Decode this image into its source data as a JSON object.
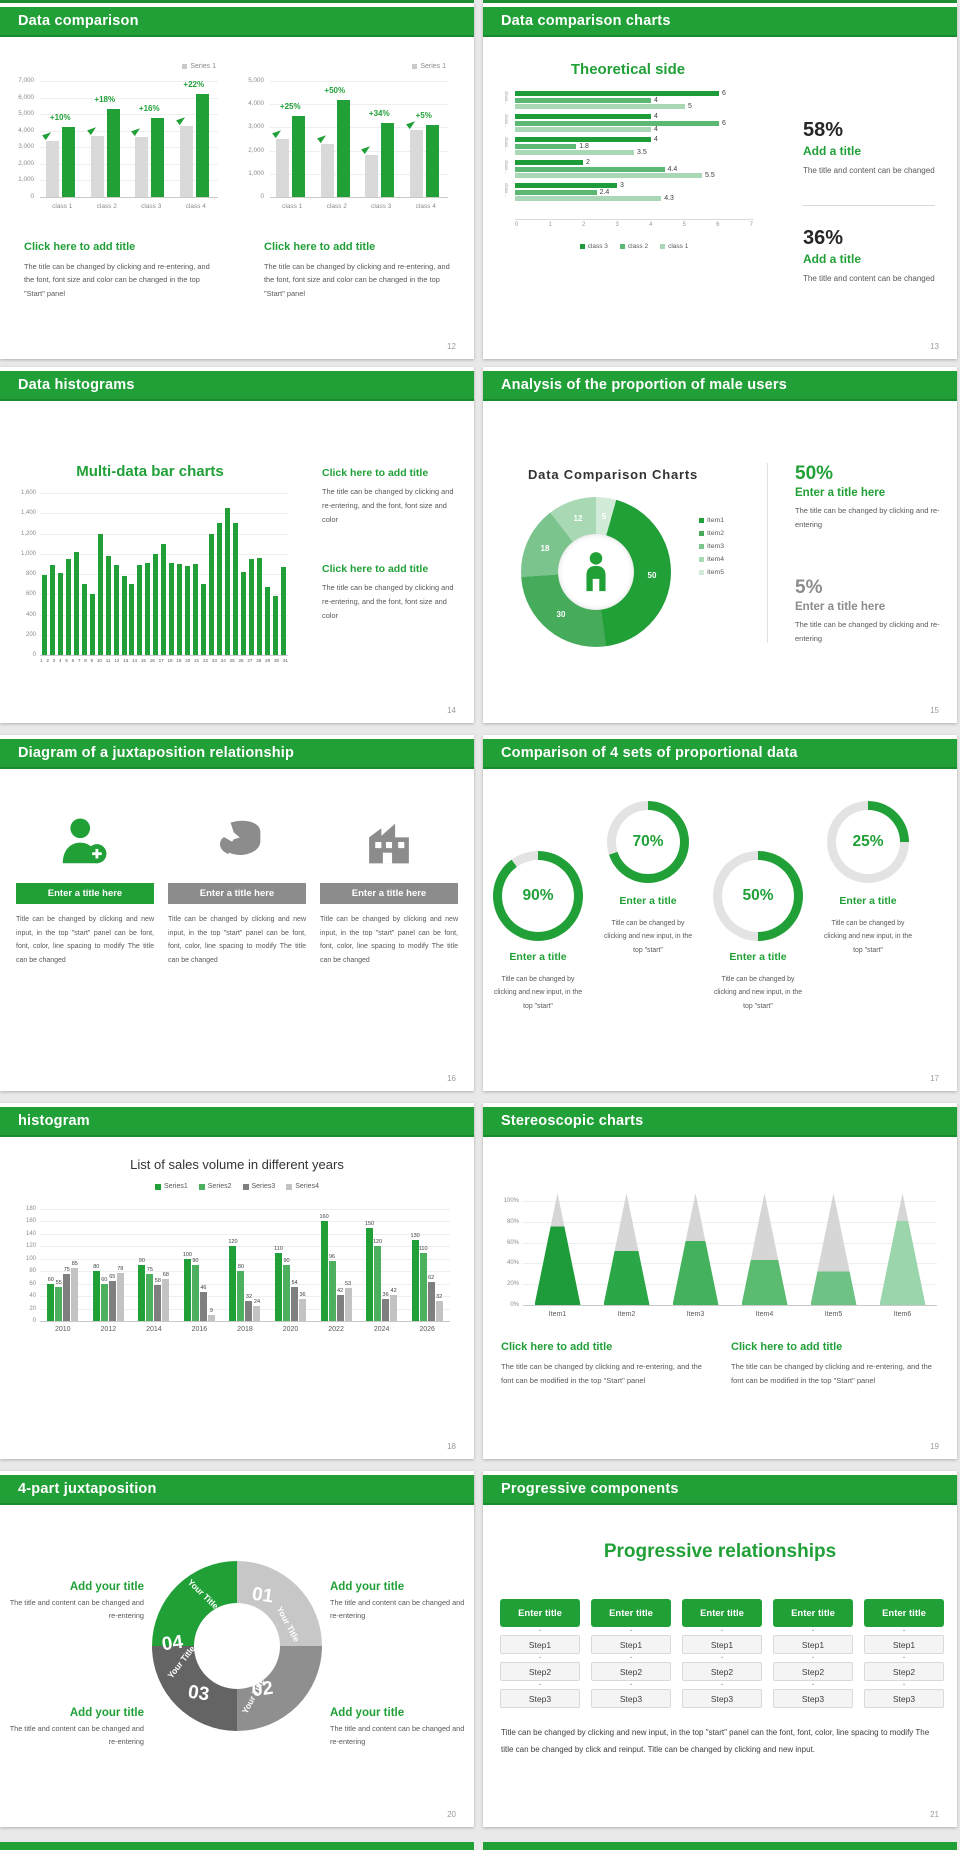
{
  "page": {
    "background": "#e9e9e9",
    "accent_green": "#21a038",
    "top_strip_color": "#1f8f35",
    "bottom_strip_color": "#21a038"
  },
  "slides": [
    {
      "title": "Data comparison",
      "page_num": "12",
      "type": "dualbar",
      "chart_refs": [
        0,
        1
      ],
      "blocks": [
        {
          "heading": "Click here to add title",
          "body": "The title can be changed by clicking and re-entering, and the font, font size and color can be changed in the top \"Start\" panel"
        },
        {
          "heading": "Click here to add title",
          "body": "The title can be changed by clicking and re-entering, and the font, font size and color can be changed in the top \"Start\" panel"
        }
      ]
    },
    {
      "title": "Data comparison charts",
      "page_num": "13",
      "type": "hbar",
      "chart_ref": 2,
      "stats": [
        {
          "value": "58%",
          "label": "Add a title",
          "body": "The title and content can be changed",
          "color": "#262626"
        },
        {
          "value": "36%",
          "label": "Add a title",
          "body": "The title and content can be changed",
          "color": "#262626"
        }
      ]
    },
    {
      "title": "Data histograms",
      "page_num": "14",
      "type": "histogram",
      "chart_ref": 3,
      "blocks": [
        {
          "heading": "Click here to add title",
          "body": "The title can be changed by clicking and re-entering, and the font, font size and color"
        },
        {
          "heading": "Click here to add title",
          "body": "The title can be changed by clicking and re-entering, and the font, font size and color"
        }
      ]
    },
    {
      "title": "Analysis of the proportion of male users",
      "page_num": "15",
      "type": "donut",
      "chart_ref": 4,
      "stats": [
        {
          "value": "50%",
          "label": "Enter a title here",
          "body": "The title can be changed by clicking and re-entering",
          "color": "#21a038"
        },
        {
          "value": "5%",
          "label": "Enter a title here",
          "body": "The title can be changed by clicking and re-entering",
          "color": "#8c8c8c"
        }
      ]
    },
    {
      "title": "Diagram of a juxtaposition relationship",
      "page_num": "16",
      "type": "trio",
      "items": [
        {
          "icon": "person-add-icon",
          "bar_color": "#21a038",
          "title": "Enter a title here",
          "body": "Title can be changed by clicking and new input, in the top \"start\" panel can be font, font, color, line spacing to modify The title can be changed"
        },
        {
          "icon": "pie-3d-icon",
          "bar_color": "#8c8c8c",
          "title": "Enter a title here",
          "body": "Title can be changed by clicking and new input, in the top \"start\" panel can be font, font, color, line spacing to modify The title can be changed"
        },
        {
          "icon": "building-icon",
          "bar_color": "#8c8c8c",
          "title": "Enter a title here",
          "body": "Title can be changed by clicking and new input, in the top \"start\" panel can be font, font, color, line spacing to modify The title can be changed"
        }
      ]
    },
    {
      "title": "Comparison of 4 sets of proportional data",
      "page_num": "17",
      "type": "rings",
      "chart_ref": 7,
      "items": [
        {
          "value": "90%",
          "label": "Enter a title",
          "body": "Title can be changed by clicking and new input, in the top \"start\""
        },
        {
          "value": "70%",
          "label": "Enter a title",
          "body": "Title can be changed by clicking and new input, in the top \"start\""
        },
        {
          "value": "50%",
          "label": "Enter a title",
          "body": "Title can be changed by clicking and new input, in the top \"start\""
        },
        {
          "value": "25%",
          "label": "Enter a title",
          "body": "Title can be changed by clicking and new input, in the top \"start\""
        }
      ]
    },
    {
      "title": "histogram",
      "page_num": "18",
      "type": "multibar",
      "chart_ref": 5
    },
    {
      "title": "Stereoscopic charts",
      "page_num": "19",
      "type": "cones",
      "chart_ref": 6,
      "blocks": [
        {
          "heading": "Click here to add title",
          "body": "The title can be changed by clicking and re-entering, and the font can be modified in the top \"Start\" panel"
        },
        {
          "heading": "Click here to add title",
          "body": "The title can be changed by clicking and re-entering, and the font can be modified in the top \"Start\" panel"
        }
      ]
    },
    {
      "title": "4-part juxtaposition",
      "page_num": "20",
      "type": "quad",
      "ring": [
        {
          "num": "01",
          "label": "Your Title",
          "color": "#c7c7c7"
        },
        {
          "num": "02",
          "label": "Your Title",
          "color": "#8f8f8f"
        },
        {
          "num": "03",
          "label": "Your Title",
          "color": "#646464"
        },
        {
          "num": "04",
          "label": "Your Title",
          "color": "#21a038"
        }
      ],
      "blocks": [
        {
          "heading": "Add your title",
          "body": "The title and content can be changed and re-entering"
        },
        {
          "heading": "Add your title",
          "body": "The title and content can be changed and re-entering"
        },
        {
          "heading": "Add your title",
          "body": "The title and content can be changed and re-entering"
        },
        {
          "heading": "Add your title",
          "body": "The title and content can be changed and re-entering"
        }
      ]
    },
    {
      "title": "Progressive components",
      "page_num": "21",
      "type": "steps",
      "main_title": "Progressive relationships",
      "columns": [
        {
          "title": "Enter title",
          "steps": [
            "Step1",
            "Step2",
            "Step3"
          ]
        },
        {
          "title": "Enter title",
          "steps": [
            "Step1",
            "Step2",
            "Step3"
          ]
        },
        {
          "title": "Enter title",
          "steps": [
            "Step1",
            "Step2",
            "Step3"
          ]
        },
        {
          "title": "Enter title",
          "steps": [
            "Step1",
            "Step2",
            "Step3"
          ]
        },
        {
          "title": "Enter title",
          "steps": [
            "Step1",
            "Step2",
            "Step3"
          ]
        }
      ],
      "body": "Title can be changed by clicking and new input, in the top \"start\" panel can the font, font, color, line spacing to modify The title can be changed by click and reinput. Title can be changed by clicking and new input."
    }
  ],
  "chart_data": [
    {
      "type": "bar",
      "title": "",
      "legend": "Series 1",
      "categories": [
        "class 1",
        "class 2",
        "class 3",
        "class 4"
      ],
      "series": [
        {
          "name": "base",
          "color": "#d9d9d9",
          "values": [
            3400,
            3700,
            3600,
            4300
          ]
        },
        {
          "name": "Series 1",
          "color": "#21a038",
          "values": [
            4200,
            5300,
            4800,
            6200
          ]
        }
      ],
      "annotations": [
        "+10%",
        "+18%",
        "+16%",
        "+22%"
      ],
      "ylim": [
        0,
        7000
      ],
      "yticks": [
        "7,000",
        "6,000",
        "5,000",
        "4,000",
        "3,000",
        "2,000",
        "1,000",
        "0"
      ]
    },
    {
      "type": "bar",
      "title": "",
      "legend": "Series 1",
      "categories": [
        "class 1",
        "class 2",
        "class 3",
        "class 4"
      ],
      "series": [
        {
          "name": "base",
          "color": "#d9d9d9",
          "values": [
            2500,
            2300,
            1800,
            2900
          ]
        },
        {
          "name": "Series 1",
          "color": "#21a038",
          "values": [
            3500,
            4200,
            3200,
            3100
          ]
        }
      ],
      "annotations": [
        "+25%",
        "+50%",
        "+34%",
        "+5%"
      ],
      "ylim": [
        0,
        5000
      ],
      "yticks": [
        "5,000",
        "4,000",
        "3,000",
        "2,000",
        "1,000",
        "0"
      ]
    },
    {
      "type": "bar-horizontal",
      "title": "Theoretical side",
      "categories": [
        "class…",
        "class…",
        "class…",
        "class…",
        "class…"
      ],
      "series": [
        {
          "name": "class 3",
          "color": "#1f9c3a",
          "values": [
            6,
            4,
            4,
            2,
            3
          ]
        },
        {
          "name": "class 2",
          "color": "#5bb974",
          "values": [
            4,
            6,
            1.8,
            4.4,
            2.4
          ]
        },
        {
          "name": "class 1",
          "color": "#aad8b6",
          "values": [
            5,
            4,
            3.5,
            5.5,
            4.3
          ]
        }
      ],
      "xlim": [
        0,
        7
      ],
      "xticks": [
        "0",
        "1",
        "2",
        "3",
        "4",
        "5",
        "6",
        "7"
      ],
      "legend_position": "bottom"
    },
    {
      "type": "bar",
      "title": "Multi-data bar charts",
      "categories": [
        "1",
        "2",
        "3",
        "4",
        "5",
        "6",
        "7",
        "8",
        "9",
        "10",
        "11",
        "12",
        "13",
        "14",
        "15",
        "16",
        "17",
        "18",
        "19",
        "20",
        "21",
        "22",
        "23",
        "24",
        "25",
        "26",
        "27",
        "28",
        "29",
        "30",
        "31"
      ],
      "values": [
        790,
        890,
        810,
        950,
        1020,
        700,
        600,
        1200,
        980,
        890,
        780,
        700,
        890,
        910,
        1000,
        1100,
        910,
        900,
        880,
        900,
        700,
        1200,
        1300,
        1450,
        1300,
        820,
        950,
        960,
        670,
        580,
        870
      ],
      "color": "#21a038",
      "ylim": [
        0,
        1600
      ],
      "yticks": [
        "1,600",
        "1,400",
        "1,200",
        "1,000",
        "800",
        "600",
        "400",
        "200",
        "0"
      ]
    },
    {
      "type": "donut",
      "title": "Data Comparison Charts",
      "labels": [
        "Item1",
        "Item2",
        "Item3",
        "Item4",
        "Item5"
      ],
      "values": [
        50,
        30,
        18,
        12,
        5
      ],
      "colors": [
        "#21a038",
        "#46ac5c",
        "#7cc48d",
        "#a9d8b5",
        "#d2ebd8"
      ],
      "order_clockwise_from_top": [
        5,
        50,
        30,
        18,
        12
      ]
    },
    {
      "type": "bar",
      "title": "List of sales volume in different years",
      "categories": [
        "2010",
        "2012",
        "2014",
        "2016",
        "2018",
        "2020",
        "2022",
        "2024",
        "2026"
      ],
      "series": [
        {
          "name": "Series1",
          "color": "#21a038",
          "values": [
            60,
            80,
            90,
            100,
            120,
            110,
            160,
            150,
            130
          ]
        },
        {
          "name": "Series2",
          "color": "#4cb05e",
          "values": [
            55,
            60,
            75,
            90,
            80,
            90,
            96,
            120,
            110
          ]
        },
        {
          "name": "Series3",
          "color": "#7f7f7f",
          "values": [
            75,
            65,
            58,
            46,
            32,
            54,
            42,
            36,
            62
          ]
        },
        {
          "name": "Series4",
          "color": "#c3c3c3",
          "values": [
            85,
            78,
            68,
            9,
            24,
            36,
            53,
            42,
            32
          ]
        }
      ],
      "ylim": [
        0,
        180
      ],
      "yticks": [
        "180",
        "160",
        "140",
        "120",
        "100",
        "80",
        "60",
        "40",
        "20",
        "0"
      ],
      "labels_on_bars": true
    },
    {
      "type": "cone",
      "title": "",
      "categories": [
        "Item1",
        "Item2",
        "Item3",
        "Item4",
        "Item5",
        "Item6"
      ],
      "values": [
        70,
        48,
        57,
        40,
        30,
        75
      ],
      "colors": [
        "#1f9c3a",
        "#2ba747",
        "#44b15c",
        "#5bbb71",
        "#6ec384",
        "#9bd5ab"
      ],
      "cap_color": "#d6d6d6",
      "ylim": [
        0,
        100
      ],
      "yticks": [
        "100%",
        "80%",
        "60%",
        "40%",
        "20%",
        "0%"
      ]
    },
    {
      "type": "progress-rings",
      "values": [
        90,
        70,
        50,
        25
      ],
      "color": "#21a038",
      "track_color": "#e3e3e3"
    }
  ]
}
